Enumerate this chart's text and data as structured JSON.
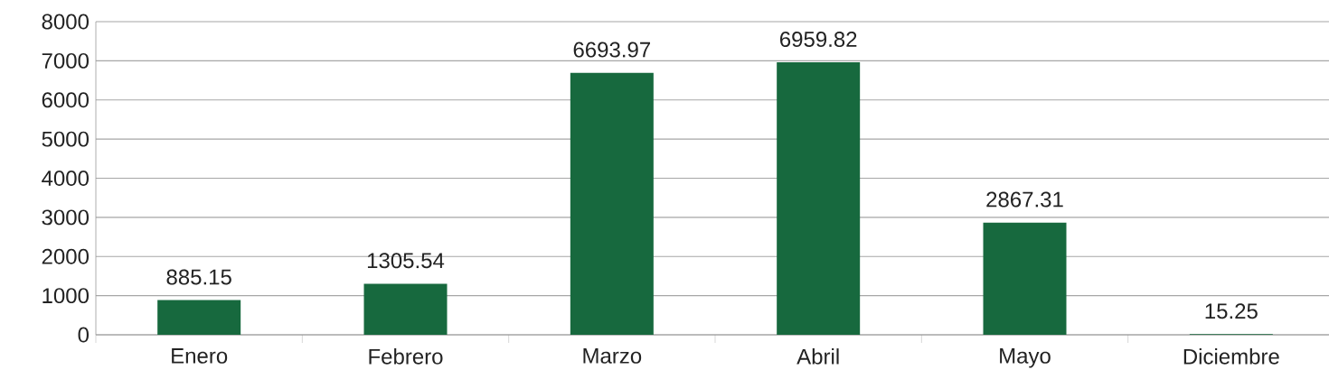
{
  "chart_data": {
    "type": "bar",
    "categories": [
      "Enero",
      "Febrero",
      "Marzo",
      "Abril",
      "Mayo",
      "Diciembre"
    ],
    "values": [
      885.15,
      1305.54,
      6693.97,
      6959.82,
      2867.31,
      15.25
    ],
    "color": "#17693e",
    "ylim": [
      0,
      8000
    ],
    "yticks": [
      0,
      1000,
      2000,
      3000,
      4000,
      5000,
      6000,
      7000,
      8000
    ],
    "grid": "y",
    "data_labels": true
  }
}
